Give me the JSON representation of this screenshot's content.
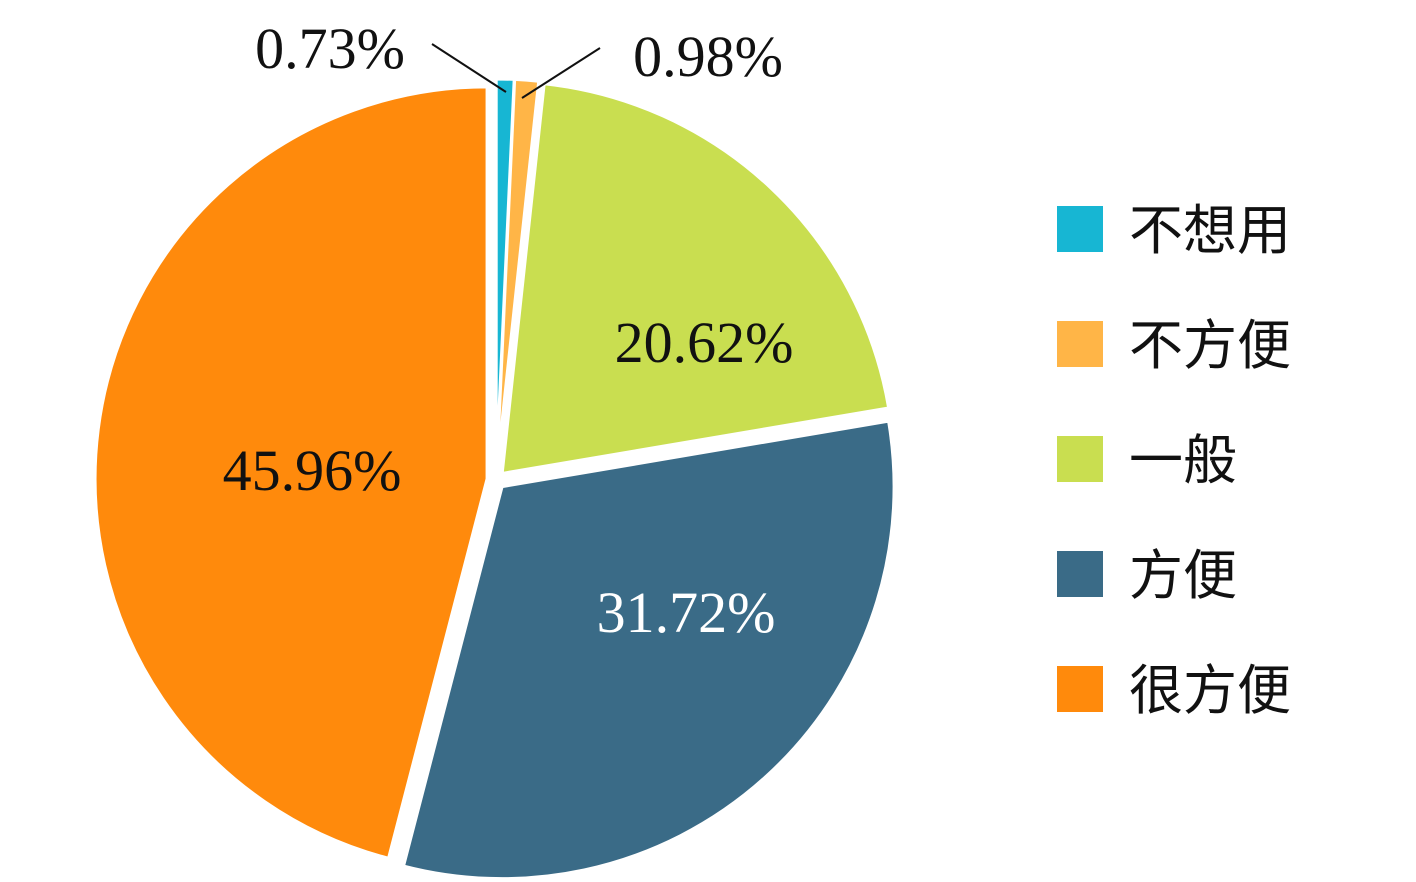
{
  "chart_data": {
    "type": "pie",
    "slices": [
      {
        "label": "不想用",
        "value": 0.73,
        "value_label": "0.73%",
        "color": "#17B6D3",
        "label_color": "#111111"
      },
      {
        "label": "不方便",
        "value": 0.98,
        "value_label": "0.98%",
        "color": "#FFB547",
        "label_color": "#111111"
      },
      {
        "label": "一般",
        "value": 20.62,
        "value_label": "20.62%",
        "color": "#C9DE50",
        "label_color": "#111111"
      },
      {
        "label": "方便",
        "value": 31.72,
        "value_label": "31.72%",
        "color": "#3A6B87",
        "label_color": "#FFFFFF"
      },
      {
        "label": "很方便",
        "value": 45.96,
        "value_label": "45.96%",
        "color": "#FF8A0C",
        "label_color": "#111111"
      }
    ],
    "start": "12 o'clock",
    "direction": "clockwise",
    "exploded": true,
    "legend_position": "right"
  }
}
